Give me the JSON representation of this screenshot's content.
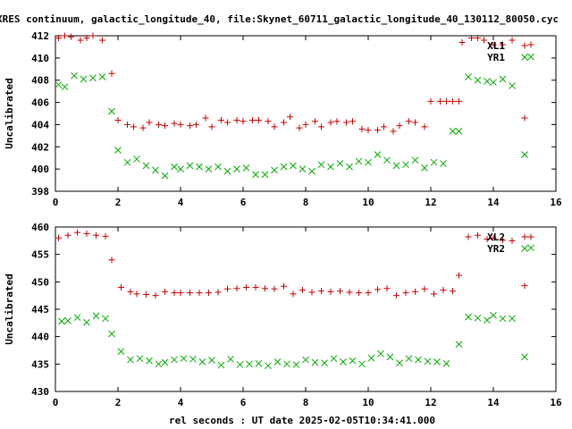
{
  "title": "XRES continuum, galactic_longitude_40, file:Skynet_60711_galactic_longitude_40_130112_80050.cyc",
  "xlabel": "rel seconds : UT date 2025-02-05T10:34:41.000",
  "colors": {
    "red_series": "#cc0000",
    "green_series": "#00aa00",
    "axes": "#000000"
  },
  "chart_data": [
    {
      "type": "scatter",
      "ylabel": "Uncalibrated",
      "xlim": [
        0,
        16
      ],
      "ylim": [
        398,
        412
      ],
      "xticks": [
        "0",
        "2",
        "4",
        "6",
        "8",
        "10",
        "12",
        "14",
        "16"
      ],
      "yticks": [
        "398",
        "400",
        "402",
        "404",
        "406",
        "408",
        "410",
        "412"
      ],
      "legend_position": "top-right",
      "series": [
        {
          "name": "XL1",
          "marker": "plus",
          "color": "#cc0000",
          "x": [
            0.1,
            0.3,
            0.5,
            0.8,
            1.0,
            1.2,
            1.5,
            1.8,
            2.0,
            2.3,
            2.5,
            2.8,
            3.0,
            3.3,
            3.5,
            3.8,
            4.0,
            4.3,
            4.5,
            4.8,
            5.0,
            5.3,
            5.5,
            5.8,
            6.0,
            6.3,
            6.5,
            6.8,
            7.0,
            7.3,
            7.5,
            7.8,
            8.0,
            8.3,
            8.5,
            8.8,
            9.0,
            9.3,
            9.5,
            9.8,
            10.0,
            10.3,
            10.5,
            10.8,
            11.0,
            11.3,
            11.5,
            11.8,
            12.0,
            12.3,
            12.5,
            12.7,
            12.9,
            13.0,
            13.3,
            13.5,
            13.7,
            14.0,
            14.3,
            14.6,
            15.0,
            15.2
          ],
          "y": [
            411.8,
            412.0,
            411.9,
            411.6,
            411.8,
            412.0,
            411.6,
            408.6,
            404.4,
            404.0,
            403.8,
            403.7,
            404.2,
            404.0,
            403.9,
            404.1,
            404.0,
            403.9,
            404.0,
            404.6,
            403.8,
            404.4,
            404.2,
            404.4,
            404.3,
            404.4,
            404.4,
            404.3,
            403.8,
            404.2,
            404.7,
            403.7,
            404.0,
            404.3,
            403.8,
            404.2,
            404.3,
            404.2,
            404.3,
            403.6,
            403.5,
            403.5,
            403.8,
            403.4,
            403.9,
            404.3,
            404.2,
            403.8,
            406.1,
            406.1,
            406.1,
            406.1,
            406.1,
            411.4,
            411.8,
            411.8,
            411.6,
            411.2,
            411.2,
            411.6,
            404.6,
            411.2
          ]
        },
        {
          "name": "YR1",
          "marker": "cross",
          "color": "#00aa00",
          "x": [
            0.1,
            0.3,
            0.6,
            0.9,
            1.2,
            1.5,
            1.8,
            2.0,
            2.3,
            2.6,
            2.9,
            3.2,
            3.5,
            3.8,
            4.0,
            4.3,
            4.6,
            4.9,
            5.2,
            5.5,
            5.8,
            6.1,
            6.4,
            6.7,
            7.0,
            7.3,
            7.6,
            7.9,
            8.2,
            8.5,
            8.8,
            9.1,
            9.4,
            9.7,
            10.0,
            10.3,
            10.6,
            10.9,
            11.2,
            11.5,
            11.8,
            12.1,
            12.4,
            12.7,
            12.9,
            13.2,
            13.5,
            13.8,
            14.0,
            14.3,
            14.6,
            15.0,
            15.2
          ],
          "y": [
            407.6,
            407.4,
            408.4,
            408.1,
            408.2,
            408.3,
            405.2,
            401.7,
            400.6,
            400.9,
            400.3,
            399.9,
            399.4,
            400.2,
            400.0,
            400.3,
            400.2,
            400.0,
            400.2,
            399.8,
            400.0,
            400.1,
            399.5,
            399.5,
            399.9,
            400.2,
            400.3,
            400.0,
            399.8,
            400.4,
            400.2,
            400.5,
            400.2,
            400.7,
            400.6,
            401.3,
            400.8,
            400.3,
            400.4,
            400.8,
            400.1,
            400.6,
            400.5,
            403.4,
            403.4,
            408.3,
            408.0,
            407.9,
            407.8,
            408.1,
            407.5,
            401.3,
            410.1
          ]
        }
      ]
    },
    {
      "type": "scatter",
      "ylabel": "Uncalibrated",
      "xlim": [
        0,
        16
      ],
      "ylim": [
        430,
        460
      ],
      "xticks": [
        "0",
        "2",
        "4",
        "6",
        "8",
        "10",
        "12",
        "14",
        "16"
      ],
      "yticks": [
        "430",
        "435",
        "440",
        "445",
        "450",
        "455",
        "460"
      ],
      "legend_position": "top-right",
      "series": [
        {
          "name": "XL2",
          "marker": "plus",
          "color": "#cc0000",
          "x": [
            0.1,
            0.4,
            0.7,
            1.0,
            1.3,
            1.6,
            1.8,
            2.1,
            2.4,
            2.6,
            2.9,
            3.2,
            3.5,
            3.8,
            4.0,
            4.3,
            4.6,
            4.9,
            5.2,
            5.5,
            5.8,
            6.1,
            6.4,
            6.7,
            7.0,
            7.3,
            7.6,
            7.9,
            8.2,
            8.5,
            8.8,
            9.1,
            9.4,
            9.7,
            10.0,
            10.3,
            10.6,
            10.9,
            11.2,
            11.5,
            11.8,
            12.1,
            12.4,
            12.7,
            12.9,
            13.2,
            13.5,
            13.8,
            14.0,
            14.3,
            14.6,
            15.0,
            15.2
          ],
          "y": [
            458.0,
            458.5,
            459.0,
            458.8,
            458.5,
            458.3,
            454.0,
            449.0,
            448.2,
            447.8,
            447.7,
            447.5,
            448.2,
            448.0,
            448.0,
            448.0,
            448.0,
            448.0,
            448.1,
            448.7,
            448.8,
            449.0,
            449.0,
            448.8,
            448.7,
            449.2,
            447.8,
            448.5,
            448.1,
            448.3,
            448.2,
            448.3,
            448.1,
            448.0,
            448.0,
            448.6,
            448.8,
            447.5,
            448.0,
            448.2,
            448.7,
            447.8,
            448.5,
            448.3,
            451.2,
            458.2,
            458.5,
            457.8,
            458.0,
            457.6,
            457.5,
            449.3,
            458.2
          ]
        },
        {
          "name": "YR2",
          "marker": "cross",
          "color": "#00aa00",
          "x": [
            0.2,
            0.4,
            0.7,
            1.0,
            1.3,
            1.6,
            1.8,
            2.1,
            2.4,
            2.7,
            3.0,
            3.3,
            3.5,
            3.8,
            4.1,
            4.4,
            4.7,
            5.0,
            5.3,
            5.6,
            5.9,
            6.2,
            6.5,
            6.8,
            7.1,
            7.4,
            7.7,
            8.0,
            8.3,
            8.6,
            8.9,
            9.2,
            9.5,
            9.8,
            10.1,
            10.4,
            10.7,
            11.0,
            11.3,
            11.6,
            11.9,
            12.2,
            12.5,
            12.9,
            13.2,
            13.5,
            13.8,
            14.0,
            14.3,
            14.6,
            15.0,
            15.2
          ],
          "y": [
            442.8,
            442.9,
            443.5,
            442.6,
            443.8,
            443.3,
            440.5,
            437.3,
            435.8,
            436.0,
            435.6,
            435.0,
            435.3,
            435.8,
            436.0,
            435.9,
            435.4,
            435.7,
            434.8,
            435.9,
            434.9,
            435.0,
            435.1,
            434.7,
            435.4,
            435.0,
            434.9,
            435.8,
            435.3,
            435.2,
            436.0,
            435.4,
            435.6,
            435.0,
            436.1,
            436.9,
            436.3,
            435.2,
            436.0,
            435.8,
            435.5,
            435.4,
            435.1,
            438.6,
            443.6,
            443.4,
            443.0,
            443.9,
            443.3,
            443.3,
            436.3,
            456.2
          ]
        }
      ]
    }
  ]
}
